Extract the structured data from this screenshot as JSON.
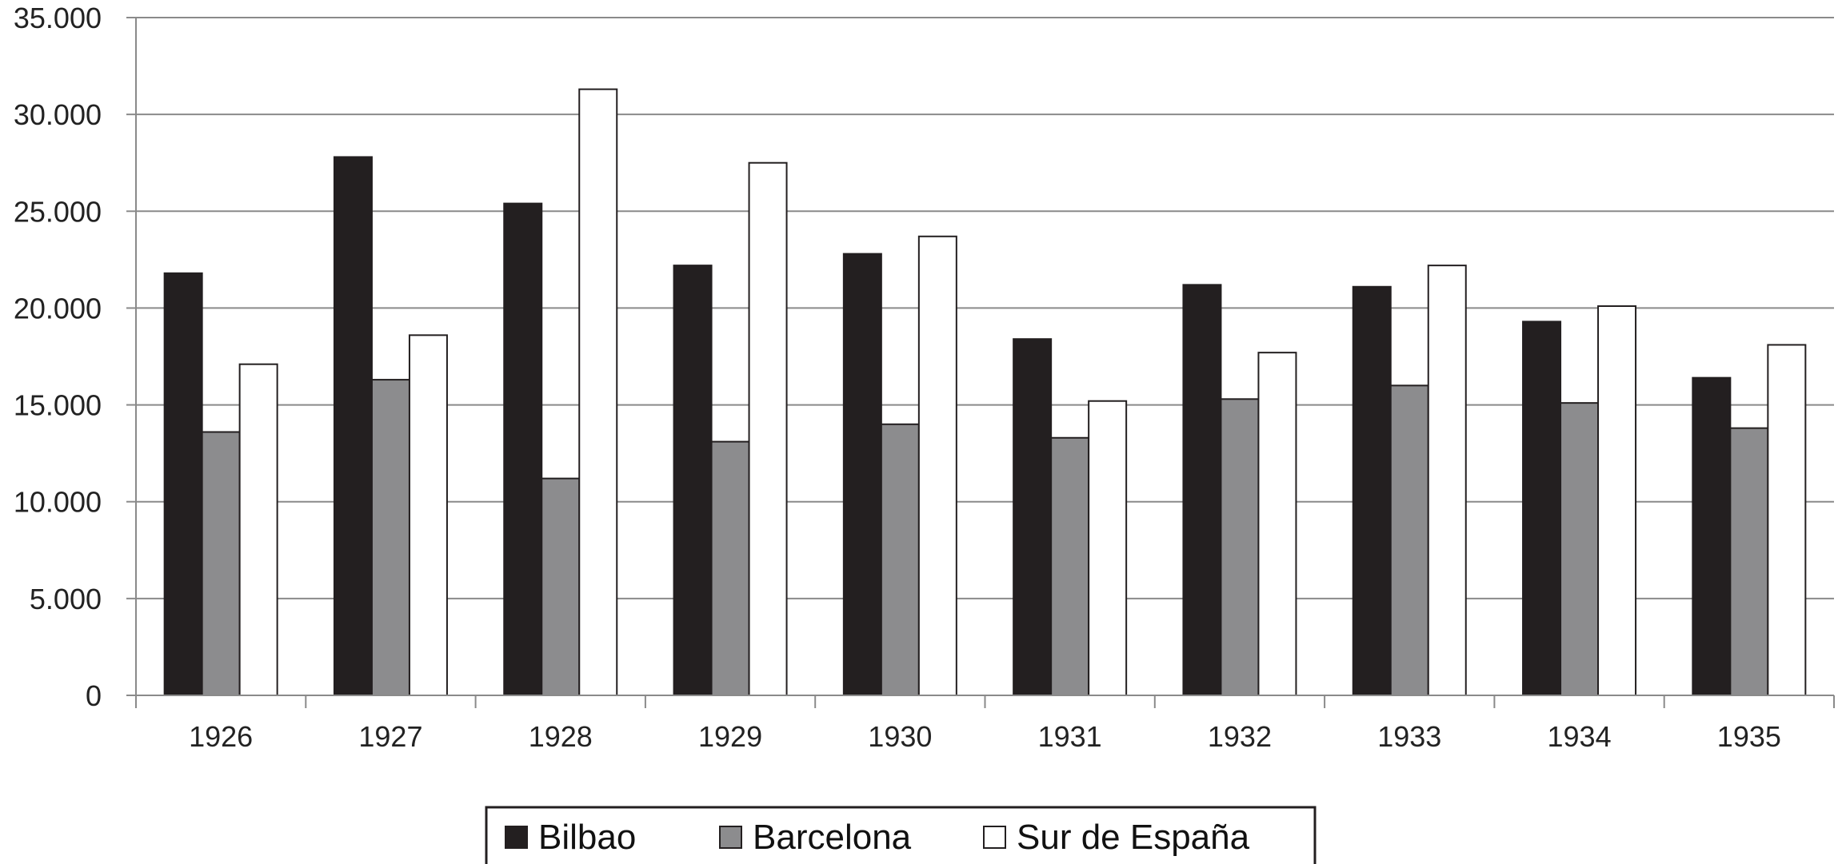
{
  "chart_data": {
    "type": "bar",
    "categories": [
      "1926",
      "1927",
      "1928",
      "1929",
      "1930",
      "1931",
      "1932",
      "1933",
      "1934",
      "1935"
    ],
    "series": [
      {
        "name": "Bilbao",
        "color": "#231f20",
        "values": [
          21800,
          27800,
          25400,
          22200,
          22800,
          18400,
          21200,
          21100,
          19300,
          16400
        ]
      },
      {
        "name": "Barcelona",
        "color": "#8c8c8e",
        "values": [
          13600,
          16300,
          11200,
          13100,
          14000,
          13300,
          15300,
          16000,
          15100,
          13800
        ]
      },
      {
        "name": "Sur de España",
        "color": "#ffffff",
        "values": [
          17100,
          18600,
          31300,
          27500,
          23700,
          15200,
          17700,
          22200,
          20100,
          18100
        ]
      }
    ],
    "y_ticks": [
      "0",
      "5.000",
      "10.000",
      "15.000",
      "20.000",
      "25.000",
      "30.000",
      "35.000"
    ],
    "ylim": [
      0,
      35000
    ],
    "grid": true,
    "legend_position": "bottom",
    "title": "",
    "xlabel": "",
    "ylabel": ""
  }
}
